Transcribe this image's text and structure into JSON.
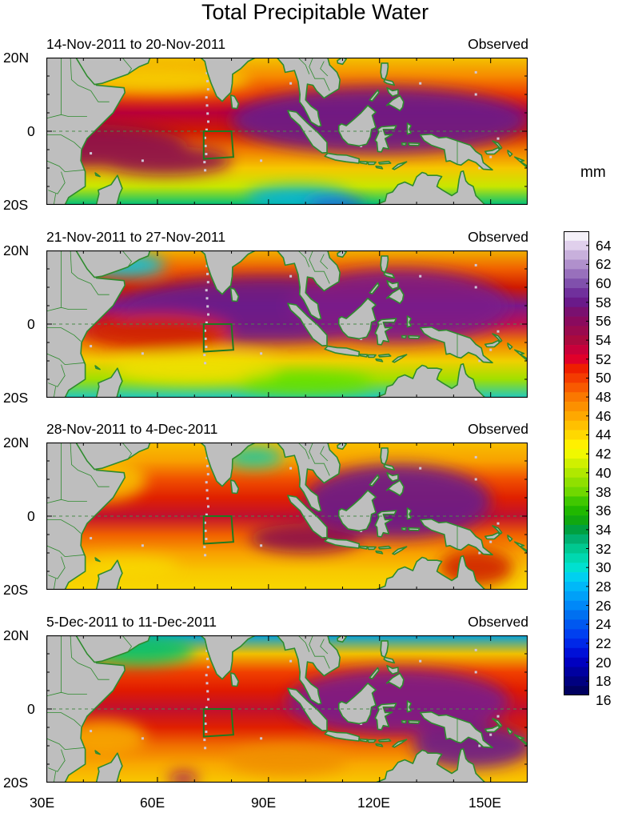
{
  "title": "Total Precipitable Water",
  "unit_label": "mm",
  "panels": [
    {
      "date_range": "14-Nov-2011 to 20-Nov-2011",
      "label": "Observed"
    },
    {
      "date_range": "21-Nov-2011 to 27-Nov-2011",
      "label": "Observed"
    },
    {
      "date_range": "28-Nov-2011 to 4-Dec-2011",
      "label": "Observed"
    },
    {
      "date_range": "5-Dec-2011 to 11-Dec-2011",
      "label": "Observed"
    }
  ],
  "lat_ticks": [
    "20N",
    "0",
    "20S"
  ],
  "lon_ticks": [
    "30E",
    "60E",
    "90E",
    "120E",
    "150E"
  ],
  "colorbar_labels": [
    "64",
    "62",
    "60",
    "58",
    "56",
    "54",
    "52",
    "50",
    "48",
    "46",
    "44",
    "42",
    "40",
    "38",
    "36",
    "34",
    "32",
    "30",
    "28",
    "26",
    "24",
    "22",
    "20",
    "18",
    "16"
  ],
  "colors": {
    "land": "#bebebe",
    "coast": "#2e8b2e",
    "box": "#1f7a1f",
    "equator": "#4a8a4a"
  }
}
